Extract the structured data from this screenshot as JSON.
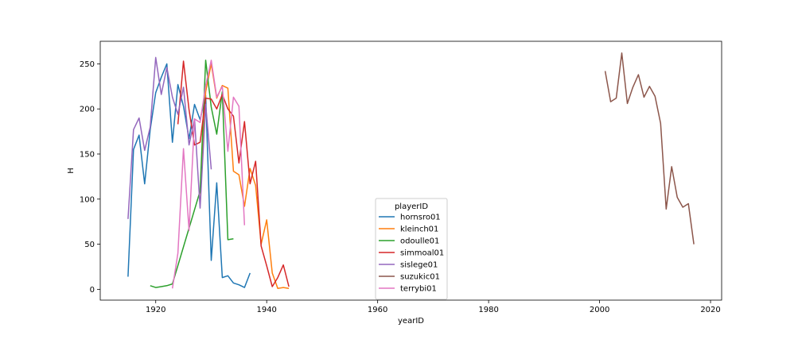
{
  "chart_data": {
    "type": "line",
    "xlabel": "yearID",
    "ylabel": "H",
    "xlim": [
      1910,
      2022
    ],
    "ylim": [
      -12,
      275
    ],
    "xticks": [
      1920,
      1940,
      1960,
      1980,
      2000,
      2020
    ],
    "yticks": [
      0,
      50,
      100,
      150,
      200,
      250
    ],
    "grid": false,
    "legend": {
      "title": "playerID",
      "placement": "lower-center"
    },
    "series": [
      {
        "name": "hornsro01",
        "color": "#1f77b4",
        "x": [
          1915,
          1916,
          1917,
          1918,
          1919,
          1920,
          1921,
          1922,
          1923,
          1924,
          1925,
          1926,
          1927,
          1928,
          1929,
          1930,
          1931,
          1932,
          1933,
          1934,
          1935,
          1936,
          1937
        ],
        "y": [
          14,
          155,
          171,
          117,
          177,
          218,
          235,
          250,
          163,
          227,
          203,
          167,
          205,
          188,
          215,
          32,
          118,
          13,
          15,
          7,
          5,
          2,
          18
        ]
      },
      {
        "name": "kleinch01",
        "color": "#ff7f0e",
        "x": [
          1928,
          1929,
          1930,
          1931,
          1932,
          1933,
          1934,
          1935,
          1936,
          1937,
          1938,
          1939,
          1940,
          1941,
          1942,
          1943,
          1944
        ],
        "y": [
          94,
          219,
          250,
          212,
          226,
          223,
          131,
          127,
          92,
          134,
          115,
          50,
          77,
          18,
          1,
          2,
          1
        ]
      },
      {
        "name": "odoulle01",
        "color": "#2ca02c",
        "x": [
          1919,
          1920,
          1921,
          1922,
          1923,
          1928,
          1929,
          1930,
          1931,
          1932,
          1933,
          1934
        ],
        "y": [
          4,
          2,
          3,
          4,
          6,
          109,
          254,
          202,
          172,
          219,
          55,
          56
        ]
      },
      {
        "name": "simmoal01",
        "color": "#d62728",
        "x": [
          1924,
          1925,
          1926,
          1927,
          1928,
          1929,
          1930,
          1931,
          1932,
          1933,
          1934,
          1935,
          1936,
          1937,
          1938,
          1939,
          1940,
          1941,
          1942,
          1943,
          1944
        ],
        "y": [
          183,
          253,
          199,
          160,
          163,
          212,
          211,
          200,
          216,
          200,
          192,
          140,
          186,
          117,
          142,
          48,
          26,
          3,
          13,
          27,
          3
        ]
      },
      {
        "name": "sislege01",
        "color": "#9467bd",
        "x": [
          1915,
          1916,
          1917,
          1918,
          1919,
          1920,
          1921,
          1922,
          1923,
          1924,
          1925,
          1926,
          1927,
          1928,
          1929,
          1930
        ],
        "y": [
          78,
          177,
          190,
          154,
          180,
          257,
          216,
          246,
          213,
          194,
          224,
          160,
          189,
          90,
          205,
          133
        ]
      },
      {
        "name": "suzukic01",
        "color": "#8c564b",
        "x": [
          2001,
          2002,
          2003,
          2004,
          2005,
          2006,
          2007,
          2008,
          2009,
          2010,
          2011,
          2012,
          2013,
          2014,
          2015,
          2016,
          2017
        ],
        "y": [
          242,
          208,
          212,
          262,
          206,
          224,
          238,
          213,
          225,
          214,
          184,
          89,
          136,
          102,
          91,
          95,
          50
        ]
      },
      {
        "name": "terrybi01",
        "color": "#e377c2",
        "x": [
          1923,
          1924,
          1925,
          1926,
          1927,
          1928,
          1929,
          1930,
          1931,
          1932,
          1933,
          1934,
          1935,
          1936
        ],
        "y": [
          1,
          40,
          156,
          65,
          189,
          185,
          226,
          254,
          213,
          225,
          153,
          213,
          203,
          71
        ]
      }
    ]
  }
}
